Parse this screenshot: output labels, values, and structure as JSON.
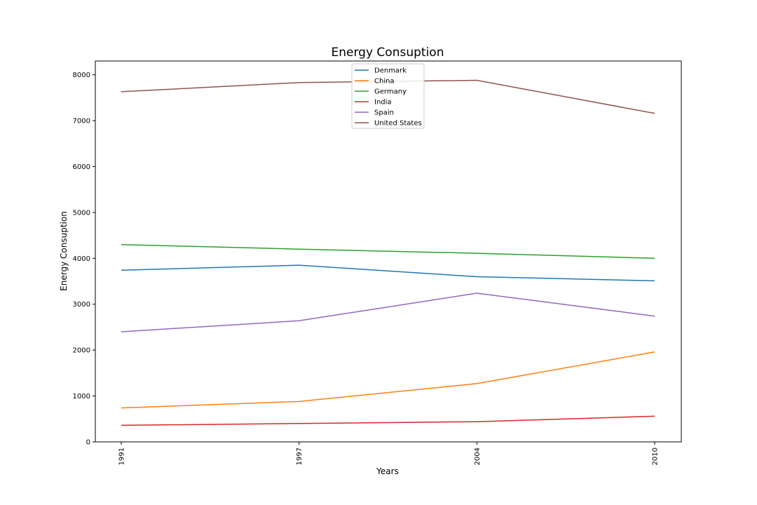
{
  "chart_data": {
    "type": "line",
    "title": "Energy Consuption",
    "xlabel": "Years",
    "ylabel": "Energy Consuption",
    "categories": [
      "1991",
      "1997",
      "2004",
      "2010"
    ],
    "ylim": [
      0,
      8300
    ],
    "yticks": [
      0,
      1000,
      2000,
      3000,
      4000,
      5000,
      6000,
      7000,
      8000
    ],
    "grid": false,
    "legend_position": "top-center",
    "series": [
      {
        "name": "Denmark",
        "color": "#1f77b4",
        "values": [
          3740,
          3850,
          3600,
          3510
        ]
      },
      {
        "name": "China",
        "color": "#ff7f0e",
        "values": [
          740,
          880,
          1270,
          1960
        ]
      },
      {
        "name": "Germany",
        "color": "#2ca02c",
        "values": [
          4300,
          4200,
          4110,
          4000
        ]
      },
      {
        "name": "India",
        "color": "#d62728",
        "values": [
          360,
          400,
          440,
          560
        ]
      },
      {
        "name": "Spain",
        "color": "#9467bd",
        "values": [
          2400,
          2640,
          3240,
          2740
        ]
      },
      {
        "name": "United States",
        "color": "#8c564b",
        "values": [
          7630,
          7830,
          7880,
          7160
        ]
      }
    ]
  }
}
